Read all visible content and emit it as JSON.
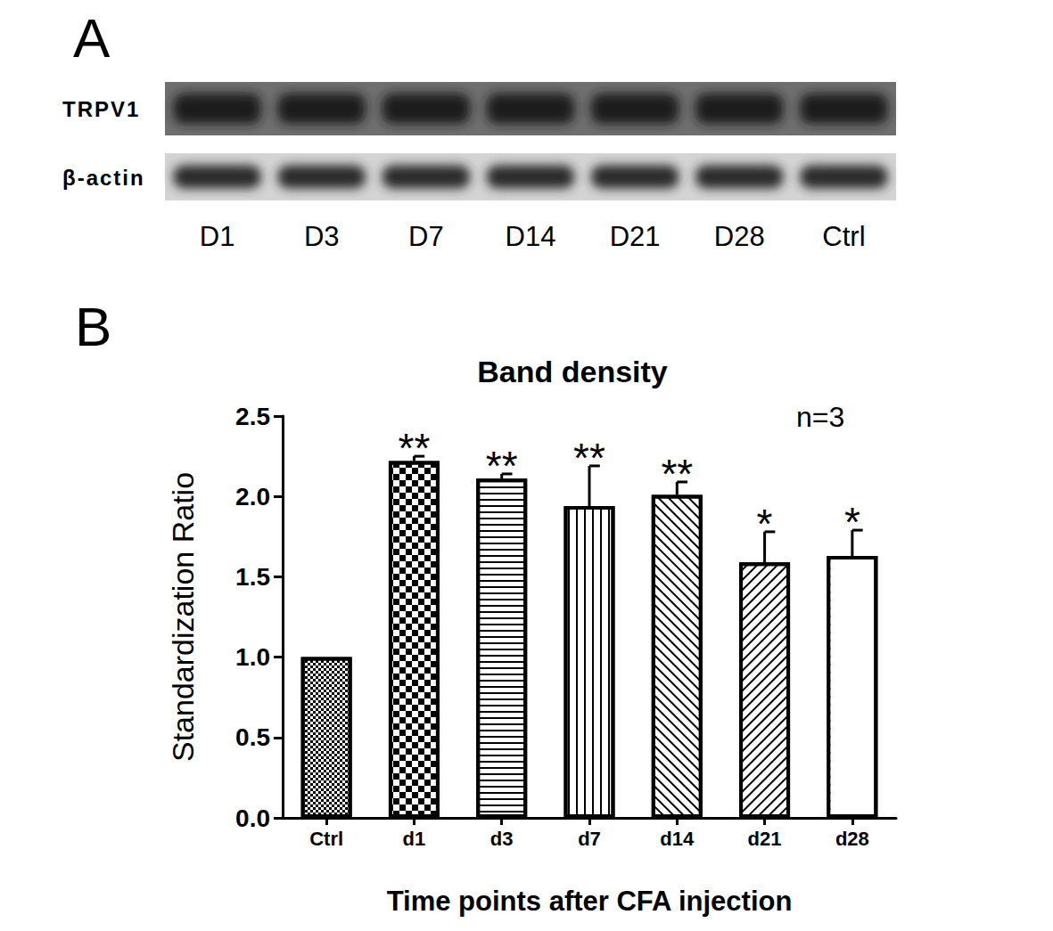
{
  "panels": [
    "A",
    "B"
  ],
  "blot": {
    "rows": [
      "TRPV1",
      "β-actin"
    ],
    "lanes": [
      "D1",
      "D3",
      "D7",
      "D14",
      "D21",
      "D28",
      "Ctrl"
    ]
  },
  "chart_data": {
    "type": "bar",
    "title": "Band density",
    "categories": [
      "Ctrl",
      "d1",
      "d3",
      "d7",
      "d14",
      "d21",
      "d28"
    ],
    "values": [
      1.0,
      2.22,
      2.11,
      1.94,
      2.01,
      1.59,
      1.63
    ],
    "errors": [
      0,
      0.03,
      0.03,
      0.25,
      0.08,
      0.19,
      0.16
    ],
    "significance": [
      null,
      "**",
      "**",
      "**",
      "**",
      "*",
      "*"
    ],
    "annotations": [
      "n=3"
    ],
    "x_label": "Time points after CFA injection",
    "y_label": "Standardization Ratio",
    "color": "#ffffff",
    "ylim": [
      0,
      2.5
    ],
    "yticks": [
      {
        "value": 0,
        "label": "0.0"
      },
      0.5,
      {
        "value": 1,
        "label": "1.0"
      },
      1.5,
      {
        "value": 2,
        "label": "2.0"
      },
      2.5
    ],
    "grid": false
  }
}
